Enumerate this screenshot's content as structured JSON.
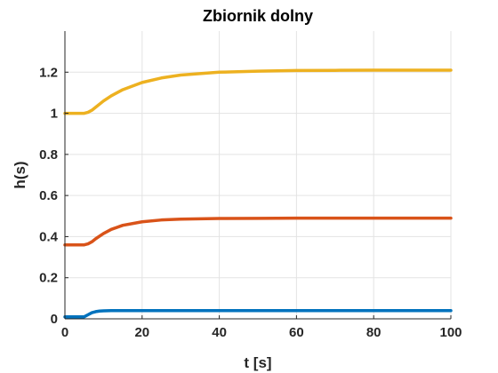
{
  "chart_data": {
    "type": "line",
    "title": "Zbiornik dolny",
    "xlabel": "t [s]",
    "ylabel": "h(s)",
    "xlim": [
      0,
      100
    ],
    "ylim": [
      0,
      1.4
    ],
    "xticks": [
      0,
      20,
      40,
      60,
      80,
      100
    ],
    "xtick_labels": [
      "0",
      "20",
      "40",
      "60",
      "80",
      "100"
    ],
    "yticks": [
      0,
      0.2,
      0.4,
      0.6,
      0.8,
      1.0,
      1.2
    ],
    "ytick_labels": [
      "0",
      "0.2",
      "0.4",
      "0.6",
      "0.8",
      "1",
      "1.2"
    ],
    "grid": true,
    "series": [
      {
        "color": "#edb120",
        "x": [
          0,
          5,
          6,
          7,
          8,
          10,
          12,
          15,
          20,
          25,
          30,
          40,
          50,
          60,
          70,
          80,
          90,
          100
        ],
        "y": [
          1.0,
          1.0,
          1.005,
          1.015,
          1.03,
          1.06,
          1.085,
          1.115,
          1.15,
          1.172,
          1.186,
          1.2,
          1.205,
          1.208,
          1.209,
          1.21,
          1.21,
          1.21
        ]
      },
      {
        "color": "#d95319",
        "x": [
          0,
          5,
          6,
          7,
          8,
          10,
          12,
          15,
          20,
          25,
          30,
          40,
          50,
          60,
          80,
          100
        ],
        "y": [
          0.36,
          0.36,
          0.365,
          0.375,
          0.39,
          0.415,
          0.435,
          0.455,
          0.472,
          0.481,
          0.485,
          0.488,
          0.489,
          0.49,
          0.49,
          0.49
        ]
      },
      {
        "color": "#0072bd",
        "x": [
          0,
          5,
          6,
          7,
          8,
          9,
          10,
          12,
          15,
          20,
          30,
          50,
          100
        ],
        "y": [
          0.01,
          0.01,
          0.02,
          0.03,
          0.035,
          0.038,
          0.039,
          0.04,
          0.04,
          0.04,
          0.04,
          0.04,
          0.04
        ]
      }
    ]
  }
}
